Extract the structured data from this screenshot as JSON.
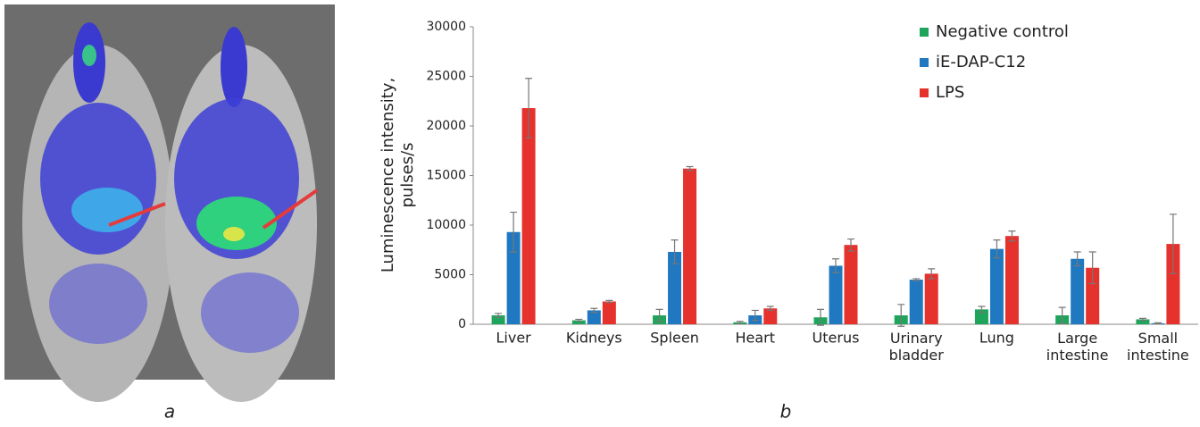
{
  "panel_labels": [
    "a",
    "b"
  ],
  "chart_data": {
    "type": "bar",
    "ylabel": [
      "Luminescence intensity,",
      "pulses/s"
    ],
    "categories": [
      "Liver",
      "Kidneys",
      "Spleen",
      "Heart",
      "Uterus",
      "Urinary bladder",
      "Lung",
      "Large intestine",
      "Small intestine"
    ],
    "series": [
      {
        "name": "Negative control",
        "color": "#1fa55b",
        "values": [
          900,
          400,
          900,
          200,
          700,
          900,
          1500,
          900,
          500
        ],
        "errors": [
          200,
          100,
          600,
          100,
          800,
          1100,
          300,
          800,
          100
        ]
      },
      {
        "name": "iE-DAP-C12",
        "color": "#2079c0",
        "values": [
          9300,
          1400,
          7300,
          900,
          5900,
          4500,
          7600,
          6600,
          100
        ],
        "errors": [
          2000,
          200,
          1200,
          500,
          700,
          100,
          900,
          700,
          50
        ]
      },
      {
        "name": "LPS",
        "color": "#e5322d",
        "values": [
          21800,
          2300,
          15700,
          1600,
          8000,
          5100,
          8900,
          5700,
          8100
        ],
        "errors": [
          3000,
          100,
          200,
          200,
          600,
          500,
          500,
          1600,
          3000
        ]
      }
    ],
    "ylim": [
      0,
      30000
    ],
    "yticks": [
      0,
      5000,
      10000,
      15000,
      20000,
      25000,
      30000
    ],
    "legend": "upper-right"
  }
}
